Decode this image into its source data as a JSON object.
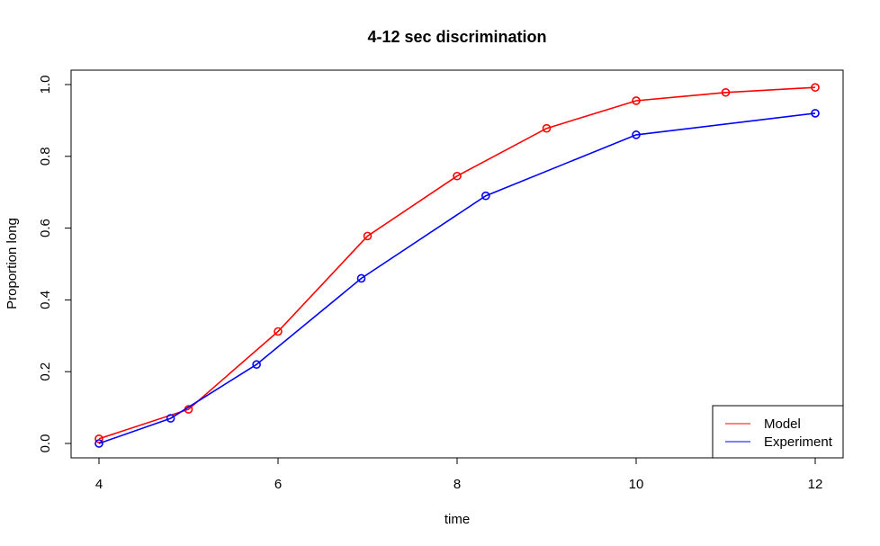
{
  "chart_data": {
    "type": "line",
    "title": "4-12 sec discrimination",
    "xlabel": "time",
    "ylabel": "Proportion long",
    "xlim": [
      4,
      12
    ],
    "ylim": [
      0,
      1
    ],
    "x_ticks": [
      4,
      6,
      8,
      10,
      12
    ],
    "y_ticks": [
      0.0,
      0.2,
      0.4,
      0.6,
      0.8,
      1.0
    ],
    "x_tick_labels": [
      "4",
      "6",
      "8",
      "10",
      "12"
    ],
    "y_tick_labels": [
      "0.0",
      "0.2",
      "0.4",
      "0.6",
      "0.8",
      "1.0"
    ],
    "grid": false,
    "legend_position": "bottom-right",
    "series": [
      {
        "name": "Model",
        "color": "#ff0000",
        "marker": "open-circle",
        "x": [
          4,
          5,
          6,
          7,
          8,
          9,
          10,
          11,
          12
        ],
        "y": [
          0.013,
          0.095,
          0.312,
          0.578,
          0.745,
          0.878,
          0.955,
          0.978,
          0.992
        ]
      },
      {
        "name": "Experiment",
        "color": "#0000ff",
        "marker": "open-circle",
        "x": [
          4,
          4.8,
          5.76,
          6.93,
          8.32,
          10,
          12
        ],
        "y": [
          0.0,
          0.07,
          0.22,
          0.46,
          0.69,
          0.86,
          0.92
        ]
      }
    ]
  }
}
